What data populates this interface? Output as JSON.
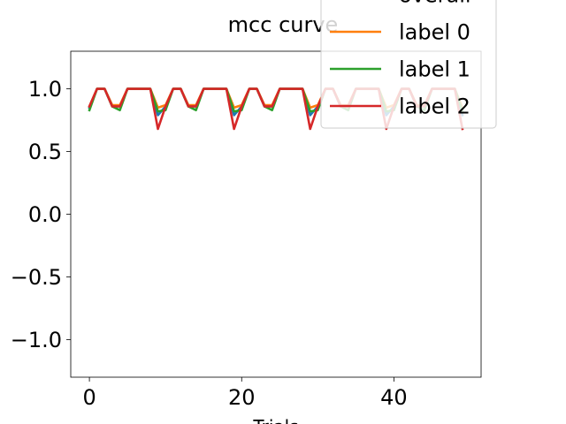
{
  "chart_data": {
    "type": "line",
    "title": "mcc curve",
    "xlabel": "Trials",
    "ylabel": "",
    "xlim": [
      -2.45,
      51.45
    ],
    "ylim": [
      -1.3,
      1.3
    ],
    "xticks": [
      0,
      20,
      40
    ],
    "xtick_labels": [
      "0",
      "20",
      "40"
    ],
    "yticks": [
      -1.0,
      -0.5,
      0.0,
      0.5,
      1.0
    ],
    "ytick_labels": [
      "−1.0",
      "−0.5",
      "0.0",
      "0.5",
      "1.0"
    ],
    "grid": false,
    "legend_position": "top-right",
    "x": [
      0,
      1,
      2,
      3,
      4,
      5,
      6,
      7,
      8,
      9,
      10,
      11,
      12,
      13,
      14,
      15,
      16,
      17,
      18,
      19,
      20,
      21,
      22,
      23,
      24,
      25,
      26,
      27,
      28,
      29,
      30,
      31,
      32,
      33,
      34,
      35,
      36,
      37,
      38,
      39,
      40,
      41,
      42,
      43,
      44,
      45,
      46,
      47,
      48,
      49
    ],
    "series": [
      {
        "name": "overall",
        "color": "#1f77b4",
        "values": [
          0.85,
          1.0,
          1.0,
          0.86,
          0.86,
          1.0,
          1.0,
          1.0,
          1.0,
          0.79,
          0.86,
          1.0,
          1.0,
          0.86,
          0.86,
          1.0,
          1.0,
          1.0,
          1.0,
          0.79,
          0.86,
          1.0,
          1.0,
          0.86,
          0.86,
          1.0,
          1.0,
          1.0,
          1.0,
          0.79,
          0.86,
          1.0,
          1.0,
          0.86,
          0.86,
          1.0,
          1.0,
          1.0,
          1.0,
          0.79,
          0.86,
          1.0,
          1.0,
          0.86,
          0.86,
          1.0,
          1.0,
          1.0,
          1.0,
          0.79
        ]
      },
      {
        "name": "label 0",
        "color": "#ff7f0e",
        "values": [
          0.86,
          1.0,
          1.0,
          0.87,
          0.87,
          1.0,
          1.0,
          1.0,
          1.0,
          0.85,
          0.87,
          1.0,
          1.0,
          0.87,
          0.87,
          1.0,
          1.0,
          1.0,
          1.0,
          0.85,
          0.87,
          1.0,
          1.0,
          0.87,
          0.87,
          1.0,
          1.0,
          1.0,
          1.0,
          0.85,
          0.87,
          1.0,
          1.0,
          0.87,
          0.87,
          1.0,
          1.0,
          1.0,
          1.0,
          0.85,
          0.87,
          1.0,
          1.0,
          0.87,
          0.87,
          1.0,
          1.0,
          1.0,
          1.0,
          0.85
        ]
      },
      {
        "name": "label 1",
        "color": "#2ca02c",
        "values": [
          0.83,
          1.0,
          1.0,
          0.86,
          0.83,
          1.0,
          1.0,
          1.0,
          1.0,
          0.82,
          0.83,
          1.0,
          1.0,
          0.86,
          0.83,
          1.0,
          1.0,
          1.0,
          1.0,
          0.82,
          0.83,
          1.0,
          1.0,
          0.86,
          0.83,
          1.0,
          1.0,
          1.0,
          1.0,
          0.82,
          0.83,
          1.0,
          1.0,
          0.86,
          0.83,
          1.0,
          1.0,
          1.0,
          1.0,
          0.82,
          0.83,
          1.0,
          1.0,
          0.86,
          0.83,
          1.0,
          1.0,
          1.0,
          1.0,
          0.82
        ]
      },
      {
        "name": "label 2",
        "color": "#d62728",
        "values": [
          0.86,
          1.0,
          1.0,
          0.86,
          0.86,
          1.0,
          1.0,
          1.0,
          1.0,
          0.68,
          0.86,
          1.0,
          1.0,
          0.86,
          0.86,
          1.0,
          1.0,
          1.0,
          1.0,
          0.68,
          0.86,
          1.0,
          1.0,
          0.86,
          0.86,
          1.0,
          1.0,
          1.0,
          1.0,
          0.68,
          0.86,
          1.0,
          1.0,
          0.86,
          0.86,
          1.0,
          1.0,
          1.0,
          1.0,
          0.68,
          0.86,
          1.0,
          1.0,
          0.86,
          0.86,
          1.0,
          1.0,
          1.0,
          1.0,
          0.68
        ]
      }
    ]
  }
}
